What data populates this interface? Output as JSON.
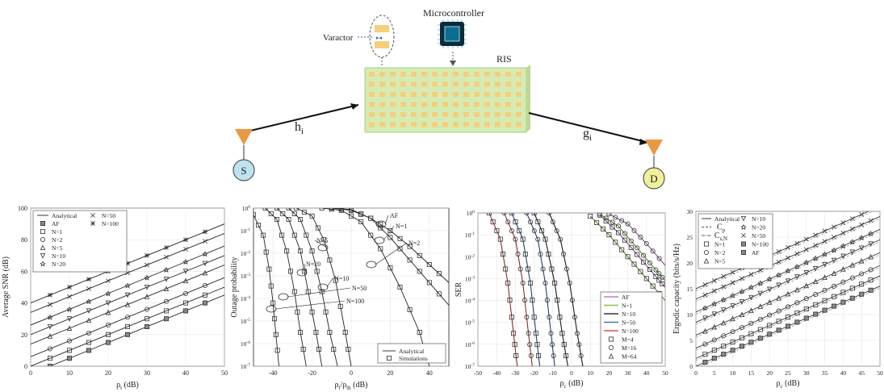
{
  "diagram": {
    "microcontroller_label": "Microcontroller",
    "varactor_label": "Varactor",
    "ris_label": "RIS",
    "source_label": "S",
    "destination_label": "D",
    "channel_h": "h",
    "channel_h_sub": "i",
    "channel_g": "g",
    "channel_g_sub": "i",
    "colors": {
      "ris": "#d6ebb4",
      "element": "#f6cf7a",
      "source": "#bfe3ee",
      "destination": "#f0ef9c",
      "antenna": "#e89a43"
    }
  },
  "chart_data": [
    {
      "type": "line",
      "xlabel": "ρ_t (dB)",
      "ylabel": "Average SNR (dB)",
      "xlim": [
        0,
        50
      ],
      "ylim": [
        0,
        100
      ],
      "xticks": [
        0,
        10,
        20,
        30,
        40,
        50
      ],
      "yticks": [
        0,
        20,
        40,
        60,
        80,
        100
      ],
      "grid": true,
      "legend": {
        "placement": "top-left",
        "entries": [
          "Analytical",
          "AF",
          "N=1",
          "N=2",
          "N=5",
          "N=10",
          "N=20",
          "N=50",
          "N=100"
        ]
      },
      "series": [
        {
          "name": "AF",
          "marker": "square-filled",
          "x": [
            0,
            50
          ],
          "y": [
            -5,
            45
          ]
        },
        {
          "name": "N=1",
          "marker": "square",
          "x": [
            0,
            50
          ],
          "y": [
            0,
            50
          ]
        },
        {
          "name": "N=2",
          "marker": "circle",
          "x": [
            0,
            50
          ],
          "y": [
            6,
            56
          ]
        },
        {
          "name": "N=5",
          "marker": "triangle",
          "x": [
            0,
            50
          ],
          "y": [
            14,
            64
          ]
        },
        {
          "name": "N=10",
          "marker": "triangle-down",
          "x": [
            0,
            50
          ],
          "y": [
            20,
            70
          ]
        },
        {
          "name": "N=20",
          "marker": "star",
          "x": [
            0,
            50
          ],
          "y": [
            26,
            76
          ]
        },
        {
          "name": "N=50",
          "marker": "x",
          "x": [
            0,
            50
          ],
          "y": [
            34,
            84
          ]
        },
        {
          "name": "N=100",
          "marker": "asterisk",
          "x": [
            0,
            50
          ],
          "y": [
            40,
            90
          ]
        }
      ]
    },
    {
      "type": "line",
      "xlabel": "ρ_t/ρ_th (dB)",
      "ylabel": "Outage probability",
      "xlim": [
        -50,
        50
      ],
      "ylim_exp": [
        -7,
        0
      ],
      "log_y": true,
      "xticks": [
        -40,
        -20,
        0,
        20,
        40
      ],
      "ytick_exps": [
        0,
        -1,
        -2,
        -3,
        -4,
        -5,
        -6,
        -7
      ],
      "grid": true,
      "legend": {
        "placement": "bottom-right",
        "entries": [
          "Analytical",
          "Simulations"
        ]
      },
      "series": [
        {
          "name": "AF",
          "x": [
            -10,
            0,
            10,
            20,
            30,
            40,
            50
          ],
          "y_exp": [
            0,
            -0.1,
            -0.45,
            -1.0,
            -1.7,
            -2.5,
            -3.3
          ]
        },
        {
          "name": "N=1",
          "x": [
            -10,
            0,
            10,
            20,
            30,
            40,
            50
          ],
          "y_exp": [
            0,
            -0.06,
            -0.45,
            -1.3,
            -2.3,
            -3.3,
            -4.3
          ]
        },
        {
          "name": "N=2",
          "x": [
            -15,
            -5,
            5,
            15,
            25,
            35,
            40
          ],
          "y_exp": [
            0,
            -0.1,
            -0.6,
            -1.8,
            -3.5,
            -5.5,
            -7
          ]
        },
        {
          "name": "N=5",
          "x": [
            -28,
            -20,
            -14,
            -8,
            -3,
            0
          ],
          "y_exp": [
            0,
            -0.35,
            -1.4,
            -3.2,
            -5.5,
            -7
          ]
        },
        {
          "name": "N=10",
          "x": [
            -32,
            -26,
            -20,
            -15,
            -11,
            -7
          ],
          "y_exp": [
            0,
            -0.5,
            -1.9,
            -3.7,
            -5.5,
            -7
          ]
        },
        {
          "name": "N=20",
          "x": [
            -38,
            -32,
            -26,
            -22,
            -18,
            -15
          ],
          "y_exp": [
            0,
            -0.5,
            -1.9,
            -3.7,
            -5.5,
            -7
          ]
        },
        {
          "name": "N=50",
          "x": [
            -44,
            -38,
            -33,
            -29,
            -26,
            -23
          ],
          "y_exp": [
            0,
            -0.5,
            -1.9,
            -3.7,
            -5.5,
            -7
          ]
        },
        {
          "name": "N=100",
          "x": [
            -50,
            -45,
            -42,
            -40,
            -38.5,
            -37
          ],
          "y_exp": [
            -0.3,
            -1.2,
            -2.7,
            -4.2,
            -5.6,
            -7
          ]
        }
      ],
      "annotations": [
        "AF",
        "N=1",
        "N=2",
        "N=5",
        "N=20",
        "N=10",
        "N=50",
        "N=100"
      ],
      "legend_labels": {
        "analytical": "Analytical",
        "simulations": "Simulations"
      }
    },
    {
      "type": "line",
      "xlabel": "ρ_c (dB)",
      "ylabel": "SER",
      "xlim": [
        -50,
        50
      ],
      "ylim_exp": [
        -7,
        0
      ],
      "log_y": true,
      "xticks": [
        -50,
        -40,
        -30,
        -20,
        -10,
        0,
        10,
        20,
        30,
        40,
        50
      ],
      "ytick_exps": [
        0,
        -1,
        -2,
        -3,
        -4,
        -5,
        -6,
        -7
      ],
      "grid": true,
      "legend": {
        "placement": "bottom-right",
        "entries": [
          "AF",
          "N=1",
          "N=10",
          "N=50",
          "N=100",
          "M=4",
          "M=16",
          "M=64"
        ]
      },
      "legend_colors": {
        "AF": "#c678c8",
        "N=1": "#8bc34a",
        "N=10": "#333333",
        "N=50": "#4a6fb5",
        "N=100": "#e05555"
      },
      "series": [
        {
          "name": "AF M=4",
          "color": "#c678c8",
          "x": [
            15,
            25,
            35,
            45,
            50
          ],
          "y_exp": [
            -0.1,
            -0.9,
            -1.9,
            -2.9,
            -3.4
          ]
        },
        {
          "name": "AF M=16",
          "color": "#c678c8",
          "x": [
            20,
            30,
            40,
            50
          ],
          "y_exp": [
            -0.05,
            -0.5,
            -1.4,
            -2.4
          ]
        },
        {
          "name": "N=1 M=4",
          "color": "#8bc34a",
          "x": [
            10,
            20,
            30,
            40,
            50
          ],
          "y_exp": [
            -0.15,
            -1.0,
            -2.0,
            -3.0,
            -4.0
          ]
        },
        {
          "name": "N=1 M=16",
          "color": "#8bc34a",
          "x": [
            15,
            25,
            35,
            45,
            50
          ],
          "y_exp": [
            -0.05,
            -0.6,
            -1.6,
            -2.6,
            -3.1
          ]
        },
        {
          "name": "N=10 M=4",
          "color": "#333333",
          "x": [
            -20,
            -14,
            -9,
            -5,
            -2
          ],
          "y_exp": [
            0,
            -1.2,
            -3.2,
            -5.5,
            -7
          ]
        },
        {
          "name": "N=10 M=16",
          "color": "#333333",
          "x": [
            -12,
            -6,
            -1,
            3,
            6
          ],
          "y_exp": [
            0,
            -1.2,
            -3.2,
            -5.5,
            -7
          ]
        },
        {
          "name": "N=50 M=4",
          "color": "#4a6fb5",
          "x": [
            -32,
            -26,
            -22,
            -19,
            -17
          ],
          "y_exp": [
            0,
            -1.2,
            -3.2,
            -5.5,
            -7
          ]
        },
        {
          "name": "N=50 M=16",
          "color": "#4a6fb5",
          "x": [
            -24,
            -18,
            -14,
            -11,
            -9
          ],
          "y_exp": [
            0,
            -1.2,
            -3.2,
            -5.5,
            -7
          ]
        },
        {
          "name": "N=100 M=4",
          "color": "#e05555",
          "x": [
            -44,
            -38,
            -34,
            -31,
            -29
          ],
          "y_exp": [
            0,
            -1.2,
            -3.2,
            -5.5,
            -7
          ]
        },
        {
          "name": "N=100 M=16",
          "color": "#e05555",
          "x": [
            -36,
            -30,
            -26,
            -23,
            -21
          ],
          "y_exp": [
            0,
            -1.2,
            -3.2,
            -5.5,
            -7
          ]
        }
      ]
    },
    {
      "type": "line",
      "xlabel": "ρ_c (dB)",
      "ylabel": "Ergodic capacity (bits/s/Hz)",
      "xlim": [
        0,
        50
      ],
      "ylim": [
        0,
        30
      ],
      "xticks": [
        0,
        5,
        10,
        15,
        20,
        25,
        30,
        35,
        40,
        45,
        50
      ],
      "yticks": [
        0,
        5,
        10,
        15,
        20,
        25,
        30
      ],
      "grid": true,
      "legend": {
        "placement": "top-left",
        "entries": [
          "Analytical",
          "C_p",
          "C_s,N",
          "N=1",
          "N=2",
          "N=5",
          "N=10",
          "N=20",
          "N=50",
          "N=100",
          "AF"
        ]
      },
      "series": [
        {
          "name": "AF",
          "x": [
            0,
            50
          ],
          "y": [
            0,
            15.5
          ]
        },
        {
          "name": "N=1",
          "x": [
            0,
            50
          ],
          "y": [
            1.5,
            17.5
          ]
        },
        {
          "name": "N=2",
          "x": [
            0,
            50
          ],
          "y": [
            3.5,
            19.5
          ]
        },
        {
          "name": "N=5",
          "x": [
            0,
            50
          ],
          "y": [
            6,
            22
          ]
        },
        {
          "name": "N=10",
          "x": [
            0,
            50
          ],
          "y": [
            8.5,
            24.5
          ]
        },
        {
          "name": "N=20",
          "x": [
            0,
            50
          ],
          "y": [
            10.5,
            26.5
          ]
        },
        {
          "name": "N=50",
          "x": [
            0,
            50
          ],
          "y": [
            13,
            29
          ]
        },
        {
          "name": "N=100",
          "x": [
            0,
            50
          ],
          "y": [
            15,
            31
          ]
        }
      ]
    }
  ]
}
